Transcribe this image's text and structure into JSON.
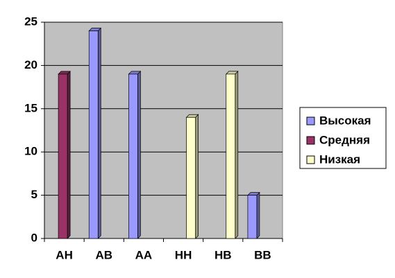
{
  "chart_data": {
    "type": "bar",
    "categories": [
      "АН",
      "АВ",
      "АА",
      "НН",
      "НВ",
      "ВВ"
    ],
    "series": [
      {
        "name": "Высокая",
        "color": "#9999ff",
        "values": [
          null,
          24,
          19,
          null,
          null,
          5
        ]
      },
      {
        "name": "Средняя",
        "color": "#993366",
        "values": [
          19,
          null,
          null,
          null,
          null,
          null
        ]
      },
      {
        "name": "Низкая",
        "color": "#ffffcc",
        "values": [
          null,
          null,
          null,
          14,
          19,
          null
        ]
      }
    ],
    "ylim": [
      0,
      25
    ],
    "yticks": [
      0,
      5,
      10,
      15,
      20,
      25
    ],
    "grid": true,
    "legend": "right"
  }
}
